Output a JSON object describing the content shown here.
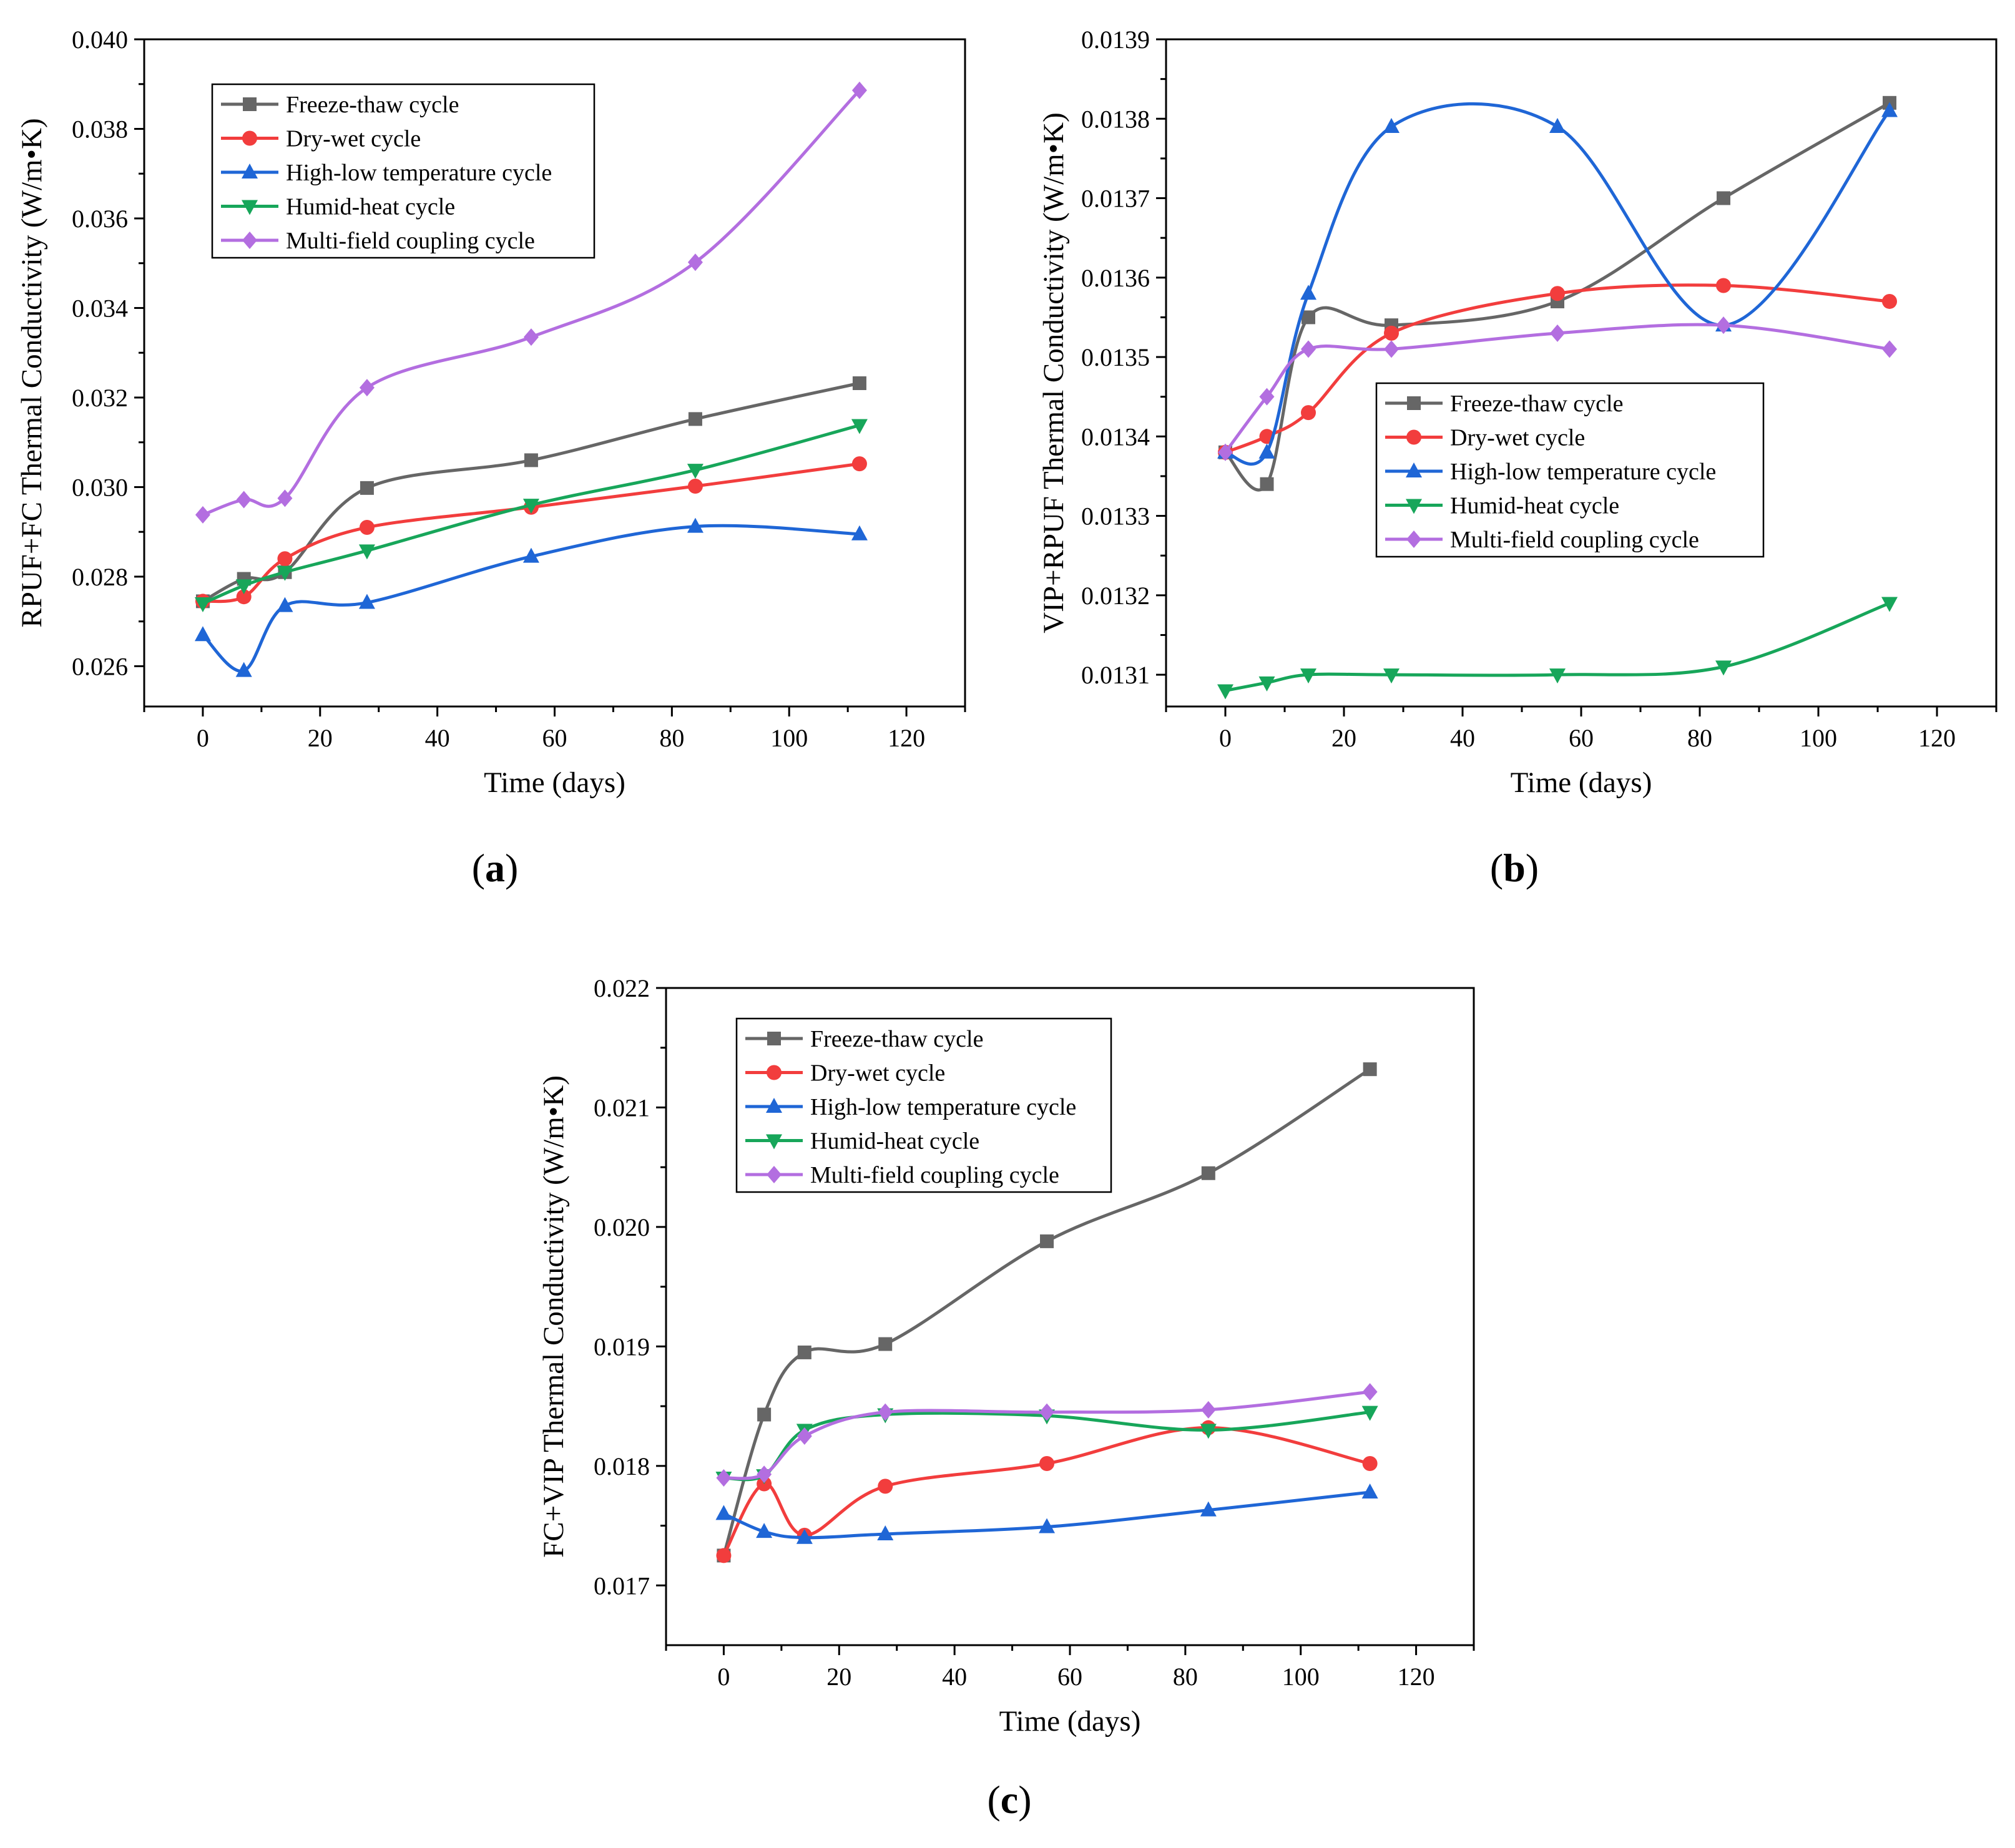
{
  "figure": {
    "panels": [
      "a",
      "b",
      "c"
    ]
  },
  "chart_data": [
    {
      "id": "a",
      "type": "line",
      "panel_label": "a",
      "xlabel": "Time (days)",
      "ylabel": "RPUF+FC Thermal Conductivity (W/m•K)",
      "xlim": [
        -10,
        130
      ],
      "ylim": [
        0.0251,
        0.04
      ],
      "xticks": [
        "0",
        "20",
        "40",
        "60",
        "80",
        "100",
        "120"
      ],
      "yticks": [
        "0.026",
        "0.028",
        "0.030",
        "0.032",
        "0.034",
        "0.036",
        "0.038",
        "0.040"
      ],
      "legend_position": "top-left",
      "x": [
        0,
        7,
        14,
        28,
        56,
        84,
        112
      ],
      "series": [
        {
          "name": "Freeze-thaw cycle",
          "color": "#666666",
          "marker": "square",
          "values": [
            0.02745,
            0.02795,
            0.0281,
            0.02998,
            0.0306,
            0.03152,
            0.03232
          ]
        },
        {
          "name": "Dry-wet cycle",
          "color": "#f23d3d",
          "marker": "circle",
          "values": [
            0.02745,
            0.02755,
            0.0284,
            0.0291,
            0.02955,
            0.03002,
            0.03052
          ]
        },
        {
          "name": "High-low temperature cycle",
          "color": "#1f66d6",
          "marker": "triangle-up",
          "values": [
            0.0267,
            0.0259,
            0.02735,
            0.02742,
            0.02845,
            0.02912,
            0.02895
          ]
        },
        {
          "name": "Humid-heat cycle",
          "color": "#17a65a",
          "marker": "triangle-down",
          "values": [
            0.0274,
            0.0278,
            0.0281,
            0.02858,
            0.0296,
            0.03038,
            0.03138
          ]
        },
        {
          "name": "Multi-field coupling cycle",
          "color": "#b36ee0",
          "marker": "diamond",
          "values": [
            0.02938,
            0.02972,
            0.02975,
            0.03222,
            0.03335,
            0.03502,
            0.03886
          ]
        }
      ]
    },
    {
      "id": "b",
      "type": "line",
      "panel_label": "b",
      "xlabel": "Time (days)",
      "ylabel": "VIP+RPUF Thermal Conductivity (W/m•K)",
      "xlim": [
        -10,
        130
      ],
      "ylim": [
        0.01306,
        0.0139
      ],
      "xticks": [
        "0",
        "20",
        "40",
        "60",
        "80",
        "100",
        "120"
      ],
      "yticks": [
        "0.0131",
        "0.0132",
        "0.0133",
        "0.0134",
        "0.0135",
        "0.0136",
        "0.0137",
        "0.0138",
        "0.0139"
      ],
      "legend_position": "center-right",
      "x": [
        0,
        7,
        14,
        28,
        56,
        84,
        112
      ],
      "series": [
        {
          "name": "Freeze-thaw cycle",
          "color": "#666666",
          "marker": "square",
          "values": [
            0.01338,
            0.01334,
            0.01355,
            0.01354,
            0.01357,
            0.0137,
            0.01382
          ]
        },
        {
          "name": "Dry-wet cycle",
          "color": "#f23d3d",
          "marker": "circle",
          "values": [
            0.01338,
            0.0134,
            0.01343,
            0.01353,
            0.01358,
            0.01359,
            0.01357
          ]
        },
        {
          "name": "High-low temperature cycle",
          "color": "#1f66d6",
          "marker": "triangle-up",
          "values": [
            0.01338,
            0.01338,
            0.01358,
            0.01379,
            0.01379,
            0.01354,
            0.01381
          ]
        },
        {
          "name": "Humid-heat cycle",
          "color": "#17a65a",
          "marker": "triangle-down",
          "values": [
            0.01308,
            0.01309,
            0.0131,
            0.0131,
            0.0131,
            0.01311,
            0.01319
          ]
        },
        {
          "name": "Multi-field coupling cycle",
          "color": "#b36ee0",
          "marker": "diamond",
          "values": [
            0.01338,
            0.01345,
            0.01351,
            0.01351,
            0.01353,
            0.01354,
            0.01351
          ]
        }
      ]
    },
    {
      "id": "c",
      "type": "line",
      "panel_label": "c",
      "xlabel": "Time (days)",
      "ylabel": "FC+VIP Thermal Conductivity (W/m•K)",
      "xlim": [
        -10,
        130
      ],
      "ylim": [
        0.0165,
        0.022
      ],
      "xticks": [
        "0",
        "20",
        "40",
        "60",
        "80",
        "100",
        "120"
      ],
      "yticks": [
        "0.017",
        "0.018",
        "0.019",
        "0.020",
        "0.021",
        "0.022"
      ],
      "legend_position": "top-left",
      "x": [
        0,
        7,
        14,
        28,
        56,
        84,
        112
      ],
      "series": [
        {
          "name": "Freeze-thaw cycle",
          "color": "#666666",
          "marker": "square",
          "values": [
            0.01725,
            0.01843,
            0.01895,
            0.01902,
            0.01988,
            0.02045,
            0.02132
          ]
        },
        {
          "name": "Dry-wet cycle",
          "color": "#f23d3d",
          "marker": "circle",
          "values": [
            0.01725,
            0.01785,
            0.01742,
            0.01783,
            0.01802,
            0.01832,
            0.01802
          ]
        },
        {
          "name": "High-low temperature cycle",
          "color": "#1f66d6",
          "marker": "triangle-up",
          "values": [
            0.0176,
            0.01745,
            0.0174,
            0.01743,
            0.01749,
            0.01763,
            0.01778
          ]
        },
        {
          "name": "Humid-heat cycle",
          "color": "#17a65a",
          "marker": "triangle-down",
          "values": [
            0.0179,
            0.01792,
            0.0183,
            0.01843,
            0.01842,
            0.0183,
            0.01845
          ]
        },
        {
          "name": "Multi-field coupling cycle",
          "color": "#b36ee0",
          "marker": "diamond",
          "values": [
            0.0179,
            0.01793,
            0.01825,
            0.01845,
            0.01845,
            0.01847,
            0.01862
          ]
        }
      ]
    }
  ]
}
